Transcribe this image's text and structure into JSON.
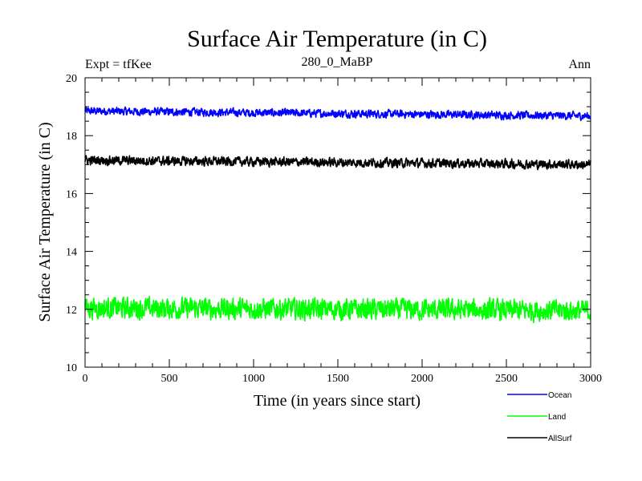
{
  "chart_data": {
    "type": "line",
    "title": "Surface Air Temperature (in C)",
    "subtitle": "280_0_MaBP",
    "top_left_label": "Expt = tfKee",
    "top_right_label": "Ann",
    "xlabel": "Time (in years since start)",
    "ylabel": "Surface Air Temperature (in C)",
    "xlim": [
      0,
      3000
    ],
    "ylim": [
      10,
      20
    ],
    "x_ticks": [
      0,
      500,
      1000,
      1500,
      2000,
      2500,
      3000
    ],
    "y_ticks": [
      10,
      12,
      14,
      16,
      18,
      20
    ],
    "x_minor_step": 100,
    "y_minor_step": 0.5,
    "grid": false,
    "legend_position": "bottom-right, below plot",
    "series": [
      {
        "name": "Ocean",
        "color": "#0000ff",
        "mean": 18.75,
        "start_mean": 18.85,
        "end_mean": 18.68,
        "noise_amplitude": 0.12
      },
      {
        "name": "Land",
        "color": "#00ff00",
        "mean": 12.0,
        "start_mean": 12.05,
        "end_mean": 11.95,
        "noise_amplitude": 0.32
      },
      {
        "name": "AllSurf",
        "color": "#000000",
        "mean": 17.05,
        "start_mean": 17.15,
        "end_mean": 17.0,
        "noise_amplitude": 0.14
      }
    ]
  }
}
